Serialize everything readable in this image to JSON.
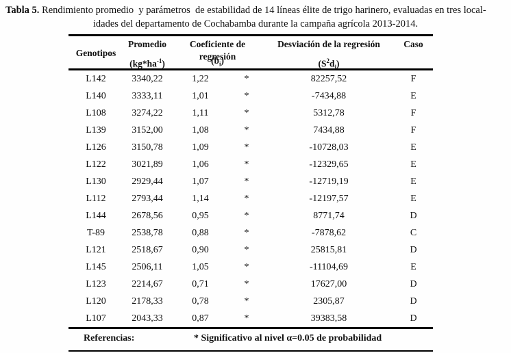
{
  "title": {
    "label": "Tabla 5.",
    "line1_rest": " Rendimiento promedio  y parámetros  de estabilidad de 14 líneas élite de trigo harinero, evaluadas en tres local-",
    "line2": "idades del departamento de Cochabamba durante la campaña agrícola 2013-2014."
  },
  "table": {
    "headers": {
      "genotipos": "Genotipos",
      "promedio": "Promedio",
      "coeficiente": "Coeficiente de regresión",
      "desviacion": "Desviación de la regresión",
      "caso": "Caso"
    },
    "units": {
      "promedio_pre": "(kg*ha",
      "promedio_sup": "-1",
      "promedio_post": ")",
      "coef_pre": "(b",
      "coef_sub": "i",
      "coef_post": ")",
      "desv_pre": "(S",
      "desv_sup": "2",
      "desv_mid": "d",
      "desv_sub": "i",
      "desv_post": ")"
    },
    "rows": [
      {
        "genotipo": "L142",
        "promedio": "3340,22",
        "b": "1,22",
        "sig": "*",
        "s2d": "82257,52",
        "caso": "F"
      },
      {
        "genotipo": "L140",
        "promedio": "3333,11",
        "b": "1,01",
        "sig": "*",
        "s2d": "-7434,88",
        "caso": "E"
      },
      {
        "genotipo": "L108",
        "promedio": "3274,22",
        "b": "1,11",
        "sig": "*",
        "s2d": "5312,78",
        "caso": "F"
      },
      {
        "genotipo": "L139",
        "promedio": "3152,00",
        "b": "1,08",
        "sig": "*",
        "s2d": "7434,88",
        "caso": "F"
      },
      {
        "genotipo": "L126",
        "promedio": "3150,78",
        "b": "1,09",
        "sig": "*",
        "s2d": "-10728,03",
        "caso": "E"
      },
      {
        "genotipo": "L122",
        "promedio": "3021,89",
        "b": "1,06",
        "sig": "*",
        "s2d": "-12329,65",
        "caso": "E"
      },
      {
        "genotipo": "L130",
        "promedio": "2929,44",
        "b": "1,07",
        "sig": "*",
        "s2d": "-12719,19",
        "caso": "E"
      },
      {
        "genotipo": "L112",
        "promedio": "2793,44",
        "b": "1,14",
        "sig": "*",
        "s2d": "-12197,57",
        "caso": "E"
      },
      {
        "genotipo": "L144",
        "promedio": "2678,56",
        "b": "0,95",
        "sig": "*",
        "s2d": "8771,74",
        "caso": "D"
      },
      {
        "genotipo": "T-89",
        "promedio": "2538,78",
        "b": "0,88",
        "sig": "*",
        "s2d": "-7878,62",
        "caso": "C"
      },
      {
        "genotipo": "L121",
        "promedio": "2518,67",
        "b": "0,90",
        "sig": "*",
        "s2d": "25815,81",
        "caso": "D"
      },
      {
        "genotipo": "L145",
        "promedio": "2506,11",
        "b": "1,05",
        "sig": "*",
        "s2d": "-11104,69",
        "caso": "E"
      },
      {
        "genotipo": "L123",
        "promedio": "2214,67",
        "b": "0,71",
        "sig": "*",
        "s2d": "17627,00",
        "caso": "D"
      },
      {
        "genotipo": "L120",
        "promedio": "2178,33",
        "b": "0,78",
        "sig": "*",
        "s2d": "2305,87",
        "caso": "D"
      },
      {
        "genotipo": "L107",
        "promedio": "2043,33",
        "b": "0,87",
        "sig": "*",
        "s2d": "39383,58",
        "caso": "D"
      }
    ],
    "footer": {
      "label": "Referencias:",
      "content": "* Significativo al nivel α=0.05 de probabilidad"
    }
  }
}
